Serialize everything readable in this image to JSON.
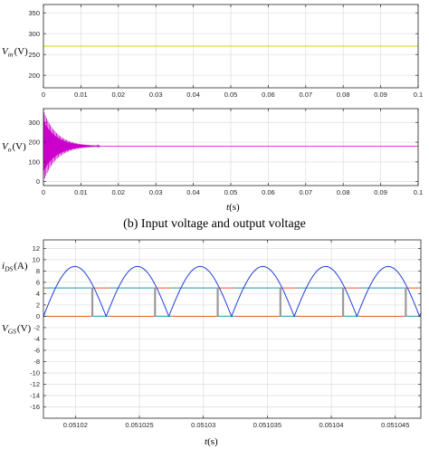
{
  "caption": "(b) Input voltage and output voltage",
  "chart_data": [
    {
      "type": "line",
      "ylabel": "V_in (V)",
      "ylabel_main": "V",
      "ylabel_sub": "in",
      "ylabel_unit": "(V)",
      "xlim": [
        0,
        0.1
      ],
      "ylim": [
        170,
        370
      ],
      "xticks": [
        0,
        0.01,
        0.02,
        0.03,
        0.04,
        0.05,
        0.06,
        0.07,
        0.08,
        0.09,
        0.1
      ],
      "xtick_labels": [
        "0",
        "0.01",
        "0.02",
        "0.03",
        "0.04",
        "0.05",
        "0.06",
        "0.07",
        "0.08",
        "0.09",
        "0.1"
      ],
      "yticks": [
        200,
        250,
        300,
        350
      ],
      "ytick_labels": [
        "200",
        "250",
        "300",
        "350"
      ],
      "grid": true,
      "series": [
        {
          "color": "#d4d400",
          "x": [
            0,
            0.1
          ],
          "y": [
            270,
            270
          ]
        }
      ]
    },
    {
      "type": "line",
      "ylabel": "V_o (V)",
      "ylabel_main": "V",
      "ylabel_sub": "o",
      "ylabel_unit": "(V)",
      "xlabel": "t(s)",
      "xlabel_main": "t",
      "xlabel_unit": "(s)",
      "xlim": [
        0,
        0.1
      ],
      "ylim": [
        -20,
        370
      ],
      "xticks": [
        0,
        0.01,
        0.02,
        0.03,
        0.04,
        0.05,
        0.06,
        0.07,
        0.08,
        0.09,
        0.1
      ],
      "xtick_labels": [
        "0",
        "0.01",
        "0.02",
        "0.03",
        "0.04",
        "0.05",
        "0.06",
        "0.07",
        "0.08",
        "0.09",
        "0.1"
      ],
      "yticks": [
        0,
        100,
        200,
        300
      ],
      "ytick_labels": [
        "0",
        "100",
        "200",
        "300"
      ],
      "grid": true,
      "series": [
        {
          "color": "#cc00cc",
          "model": "damped_oscillation",
          "steady_value": 180,
          "start_value": 0,
          "osc_freq_hz": 1500,
          "decay_time_s": 0.0035,
          "settle_time_s": 0.015
        }
      ]
    },
    {
      "type": "line",
      "ylabel": "i_DS (A) / V_GS (V)",
      "ylabel1_main": "i",
      "ylabel1_sub": "DS",
      "ylabel1_unit": "(A)",
      "ylabel2_main": "V",
      "ylabel2_sub": "GS",
      "ylabel2_unit": "(V)",
      "xlabel": "t(s)",
      "xlabel_main": "t",
      "xlabel_unit": "(s)",
      "xlim": [
        0.0510175,
        0.051047
      ],
      "ylim": [
        -18,
        13.5
      ],
      "xticks": [
        0.05102,
        0.051025,
        0.05103,
        0.051035,
        0.05104,
        0.051045
      ],
      "xtick_labels": [
        "0.05102",
        "0.051025",
        "0.05103",
        "0.051035",
        "0.05104",
        "0.051045"
      ],
      "yticks": [
        -16,
        -14,
        -12,
        -10,
        -8,
        -6,
        -4,
        -2,
        0,
        2,
        4,
        6,
        8,
        10,
        12
      ],
      "ytick_labels": [
        "-16",
        "-14",
        "-12",
        "-10",
        "-8",
        "-6",
        "-4",
        "-2",
        "0",
        "2",
        "4",
        "6",
        "8",
        "10",
        "12"
      ],
      "grid": true,
      "period_s": 4.9e-06,
      "first_zero_s": 0.0510175,
      "peak_value": 8.8,
      "high_level": 5,
      "low_level": 0,
      "series": [
        {
          "color": "#1f3fd6",
          "model": "rectified_sine",
          "description": "i_DS"
        },
        {
          "color": "#2fb0c8",
          "model": "gate_pulse_high"
        },
        {
          "color": "#e05a28",
          "model": "gate_pulse_low"
        },
        {
          "color": "#9a9a9a",
          "model": "transition_lines"
        }
      ]
    }
  ],
  "colors": {
    "axes": "#262626",
    "grid": "#dcdcdc",
    "plot_bg": "#ffffff"
  }
}
